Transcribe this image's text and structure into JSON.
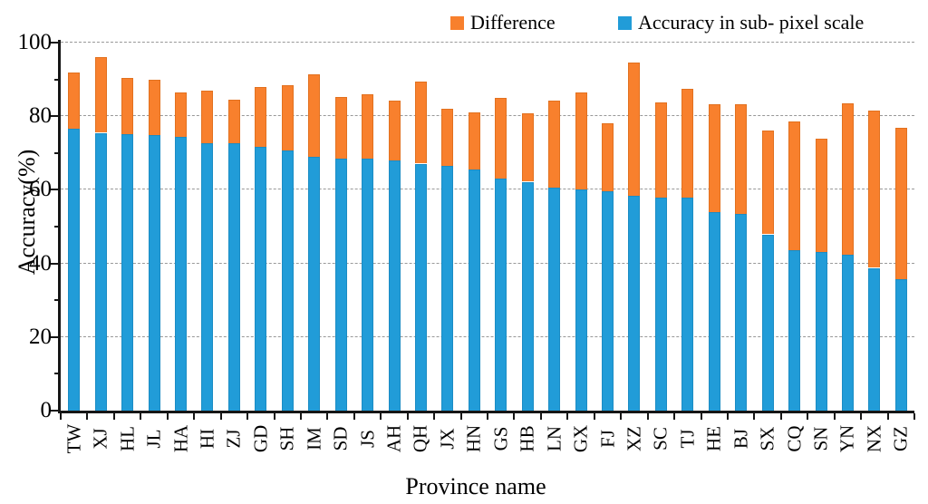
{
  "legend": {
    "items": [
      {
        "label": "Difference",
        "color": "#F8802D",
        "swatch": "orange-square"
      },
      {
        "label": "Accuracy in sub- pixel scale",
        "color": "#219CD8",
        "swatch": "blue-square"
      }
    ]
  },
  "chart_data": {
    "type": "bar",
    "stacked": true,
    "title": "",
    "xlabel": "Province name",
    "ylabel": "Accuracy(%)",
    "ylim": [
      0,
      100
    ],
    "yticks": [
      0,
      20,
      40,
      60,
      80,
      100
    ],
    "minor_ytick_step": 10,
    "grid": "horizontal-dashed",
    "legend_position": "top",
    "categories": [
      "TW",
      "XJ",
      "HL",
      "JL",
      "HA",
      "HI",
      "ZJ",
      "GD",
      "SH",
      "IM",
      "SD",
      "JS",
      "AH",
      "QH",
      "JX",
      "HN",
      "GS",
      "HB",
      "LN",
      "GX",
      "FJ",
      "XZ",
      "SC",
      "TJ",
      "HE",
      "BJ",
      "SX",
      "CQ",
      "SN",
      "YN",
      "NX",
      "GZ"
    ],
    "series": [
      {
        "name": "Accuracy in sub- pixel scale",
        "color": "#219CD8",
        "border_color": "#1b8cc4",
        "values": [
          76.5,
          75.5,
          75.2,
          74.9,
          74.4,
          72.7,
          72.7,
          71.6,
          70.8,
          69.0,
          68.5,
          68.4,
          67.9,
          67.1,
          66.6,
          65.6,
          63.1,
          62.2,
          60.5,
          60.2,
          59.5,
          58.4,
          57.9,
          57.9,
          54.0,
          53.5,
          47.9,
          43.5,
          43.1,
          42.4,
          38.8,
          35.8
        ],
        "values_unit": "%"
      },
      {
        "name": "Difference",
        "color": "#F8802D",
        "border_color": "#e2711f",
        "values": [
          15.5,
          20.5,
          15.3,
          15.1,
          12.1,
          14.3,
          11.8,
          16.4,
          17.7,
          22.5,
          16.8,
          17.6,
          16.4,
          22.4,
          15.4,
          15.4,
          21.9,
          18.5,
          23.7,
          26.3,
          18.7,
          36.2,
          25.8,
          29.6,
          29.3,
          29.7,
          28.3,
          35.0,
          30.9,
          41.1,
          42.8,
          41.0
        ],
        "values_unit": "%"
      }
    ],
    "stack_totals": [
      92.0,
      96.0,
      90.5,
      90.0,
      86.5,
      87.0,
      84.5,
      88.0,
      88.5,
      91.5,
      85.3,
      86.0,
      84.3,
      89.5,
      82.0,
      81.0,
      85.0,
      80.7,
      84.2,
      86.5,
      78.2,
      94.6,
      83.7,
      87.5,
      83.3,
      83.2,
      76.2,
      78.5,
      74.0,
      83.5,
      81.6,
      76.8
    ]
  }
}
